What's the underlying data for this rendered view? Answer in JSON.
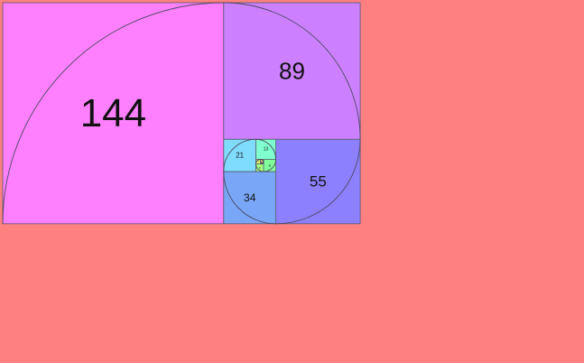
{
  "squares": [
    {
      "label": "144",
      "color": "#ff80ff"
    },
    {
      "label": "89",
      "color": "#cc80ff"
    },
    {
      "label": "55",
      "color": "#8c80ff"
    },
    {
      "label": "34",
      "color": "#7aa6f8"
    },
    {
      "label": "21",
      "color": "#80dcff"
    },
    {
      "label": "13",
      "color": "#80ffd0"
    },
    {
      "label": "8",
      "color": "#80ff9a"
    },
    {
      "label": "5",
      "color": "#a8ff80"
    },
    {
      "label": "3",
      "color": "#e6ff80"
    },
    {
      "label": "2",
      "color": "#ffe680"
    },
    {
      "label": "1",
      "color": "#ffb380"
    },
    {
      "label": "1",
      "color": "#ff8080"
    }
  ],
  "frame_color": "#ff8080"
}
